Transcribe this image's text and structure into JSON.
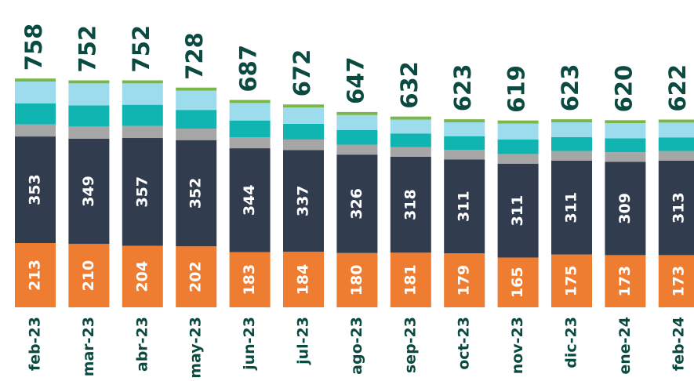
{
  "chart_data": {
    "type": "stacked_bar",
    "categories": [
      "feb-23",
      "mar-23",
      "abr-23",
      "may-23",
      "jun-23",
      "jul-23",
      "ago-23",
      "sep-23",
      "oct-23",
      "nov-23",
      "dic-23",
      "ene-24",
      "feb-24"
    ],
    "series": [
      {
        "color": "#ee7d31",
        "labels": true,
        "values": [
          213,
          210,
          204,
          202,
          183,
          184,
          180,
          181,
          179,
          165,
          175,
          173,
          173
        ]
      },
      {
        "color": "#323c4f",
        "labels": true,
        "values": [
          353,
          349,
          357,
          352,
          344,
          337,
          326,
          318,
          311,
          311,
          311,
          309,
          313
        ]
      },
      {
        "color": "#a6a6a6",
        "labels": false,
        "values": [
          40,
          40,
          40,
          38,
          36,
          35,
          33,
          32,
          32,
          32,
          32,
          32,
          32
        ]
      },
      {
        "color": "#10b4b0",
        "labels": false,
        "values": [
          70,
          70,
          70,
          62,
          56,
          52,
          48,
          45,
          45,
          48,
          46,
          46,
          45
        ]
      },
      {
        "color": "#9ddcec",
        "labels": false,
        "values": [
          72,
          73,
          71,
          64,
          58,
          54,
          50,
          46,
          46,
          53,
          49,
          50,
          49
        ]
      },
      {
        "color": "#7ab648",
        "labels": false,
        "values": [
          10,
          10,
          10,
          10,
          10,
          10,
          10,
          10,
          10,
          10,
          10,
          10,
          10
        ]
      }
    ],
    "totals": [
      758,
      752,
      752,
      728,
      687,
      672,
      647,
      632,
      623,
      619,
      623,
      620,
      622
    ],
    "ylim": [
      0,
      800
    ]
  }
}
